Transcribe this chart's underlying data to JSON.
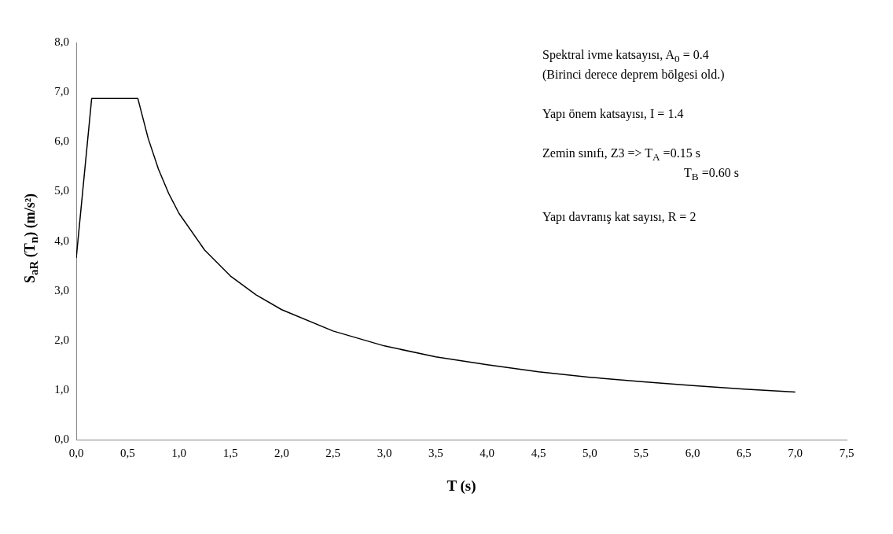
{
  "chart_data": {
    "type": "line",
    "xlabel": "T (s)",
    "ylabel": "S$_{aR}$ (T$_{n}$)    (m/s²)",
    "x": [
      0,
      0.15,
      0.6,
      0.7,
      0.8,
      0.9,
      1.0,
      1.25,
      1.5,
      1.75,
      2.0,
      2.5,
      3.0,
      3.5,
      4.0,
      4.5,
      5.0,
      5.5,
      6.0,
      6.5,
      7.0
    ],
    "series": [
      {
        "color": "#000000",
        "values": [
          3.66,
          6.87,
          6.87,
          6.07,
          5.45,
          4.96,
          4.56,
          3.82,
          3.3,
          2.92,
          2.62,
          2.19,
          1.89,
          1.67,
          1.51,
          1.37,
          1.26,
          1.17,
          1.09,
          1.02,
          0.96
        ]
      }
    ],
    "xlim": [
      0,
      7.5
    ],
    "xticks": [
      {
        "value": 0,
        "label": "0,0"
      },
      {
        "value": 0.5,
        "label": "0,5"
      },
      {
        "value": 1,
        "label": "1,0"
      },
      {
        "value": 1.5,
        "label": "1,5"
      },
      {
        "value": 2,
        "label": "2,0"
      },
      {
        "value": 2.5,
        "label": "2,5"
      },
      {
        "value": 3,
        "label": "3,0"
      },
      {
        "value": 3.5,
        "label": "3,5"
      },
      {
        "value": 4,
        "label": "4,0"
      },
      {
        "value": 4.5,
        "label": "4,5"
      },
      {
        "value": 5,
        "label": "5,0"
      },
      {
        "value": 5.5,
        "label": "5,5"
      },
      {
        "value": 6,
        "label": "6,0"
      },
      {
        "value": 6.5,
        "label": "6,5"
      },
      {
        "value": 7,
        "label": "7,0"
      },
      {
        "value": 7.5,
        "label": "7,5"
      }
    ],
    "ylim": [
      0,
      8
    ],
    "yticks": [
      {
        "value": 0,
        "label": "0,0"
      },
      {
        "value": 1,
        "label": "1,0"
      },
      {
        "value": 2,
        "label": "2,0"
      },
      {
        "value": 3,
        "label": "3,0"
      },
      {
        "value": 4,
        "label": "4,0"
      },
      {
        "value": 5,
        "label": "5,0"
      },
      {
        "value": 6,
        "label": "6,0"
      },
      {
        "value": 7,
        "label": "7,0"
      },
      {
        "value": 8,
        "label": "8,0"
      }
    ],
    "annotations": [
      "Spektral ivme katsayısı, A$_{0}$ = 0.4",
      "(Birinci derece deprem bölgesi old.)",
      "Yapı önem katsayısı, I = 1.4",
      "Zemin sınıfı, Z3 => T$_{A}$ =0.15 s",
      "T$_{B}$ =0.60 s",
      "Yapı davranış kat sayısı, R = 2"
    ],
    "grid": false,
    "legend": false,
    "marker": "none",
    "line_style": "solid"
  }
}
